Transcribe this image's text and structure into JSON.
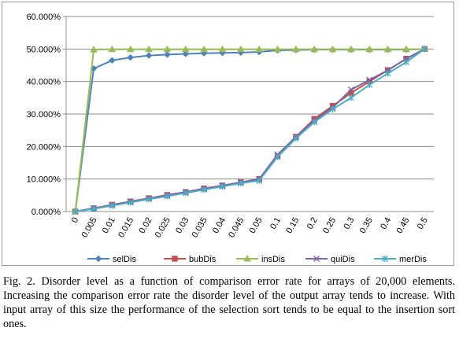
{
  "caption": "Fig. 2.  Disorder level as a function of comparison error rate for arrays of 20,000 elements. Increasing the comparison error rate the disorder level of the output array tends to increase. With input array of this size the performance of the selection sort tends to be equal to the insertion sort ones.",
  "chart_data": {
    "type": "line",
    "title": "",
    "xlabel": "",
    "ylabel": "",
    "categories": [
      "0",
      "0.005",
      "0.01",
      "0.015",
      "0.02",
      "0.025",
      "0.03",
      "0.035",
      "0.04",
      "0.045",
      "0.05",
      "0.1",
      "0.15",
      "0.2",
      "0.25",
      "0.3",
      "0.35",
      "0.4",
      "0.45",
      "0.5"
    ],
    "ylim": [
      0,
      60
    ],
    "yticks": [
      "0.000%",
      "10.000%",
      "20.000%",
      "30.000%",
      "40.000%",
      "50.000%",
      "60.000%"
    ],
    "grid": "horizontal",
    "legend_position": "bottom",
    "series": [
      {
        "name": "selDis",
        "color": "#4f81bd",
        "marker": "diamond",
        "values": [
          0,
          44.0,
          46.5,
          47.4,
          48.0,
          48.3,
          48.5,
          48.7,
          48.8,
          48.9,
          49.1,
          49.6,
          49.7,
          49.8,
          49.8,
          49.8,
          49.8,
          49.8,
          49.8,
          50.0
        ]
      },
      {
        "name": "bubDis",
        "color": "#c0504d",
        "marker": "square",
        "values": [
          0,
          1.0,
          2.1,
          3.1,
          4.1,
          5.1,
          6.0,
          7.1,
          8.0,
          9.0,
          10.0,
          17.0,
          23.0,
          28.5,
          32.5,
          36.5,
          40.0,
          43.5,
          47.0,
          50.0
        ]
      },
      {
        "name": "insDis",
        "color": "#9bbb59",
        "marker": "triangle",
        "values": [
          0,
          49.8,
          49.9,
          49.9,
          49.9,
          49.9,
          49.9,
          49.9,
          49.9,
          49.9,
          49.9,
          49.9,
          49.9,
          49.9,
          49.9,
          49.9,
          49.9,
          49.9,
          49.9,
          50.0
        ]
      },
      {
        "name": "quiDis",
        "color": "#8064a2",
        "marker": "x",
        "values": [
          0,
          1.0,
          2.0,
          3.0,
          4.0,
          5.0,
          6.0,
          7.0,
          8.0,
          9.0,
          10.0,
          17.5,
          23.0,
          28.0,
          32.0,
          37.5,
          40.5,
          43.5,
          47.0,
          50.0
        ]
      },
      {
        "name": "merDis",
        "color": "#4bacc6",
        "marker": "star",
        "values": [
          0,
          0.8,
          1.8,
          2.8,
          3.8,
          4.7,
          5.7,
          6.7,
          7.7,
          8.7,
          9.5,
          16.8,
          22.5,
          27.5,
          31.5,
          35.0,
          39.0,
          42.5,
          46.0,
          50.0
        ]
      }
    ]
  }
}
